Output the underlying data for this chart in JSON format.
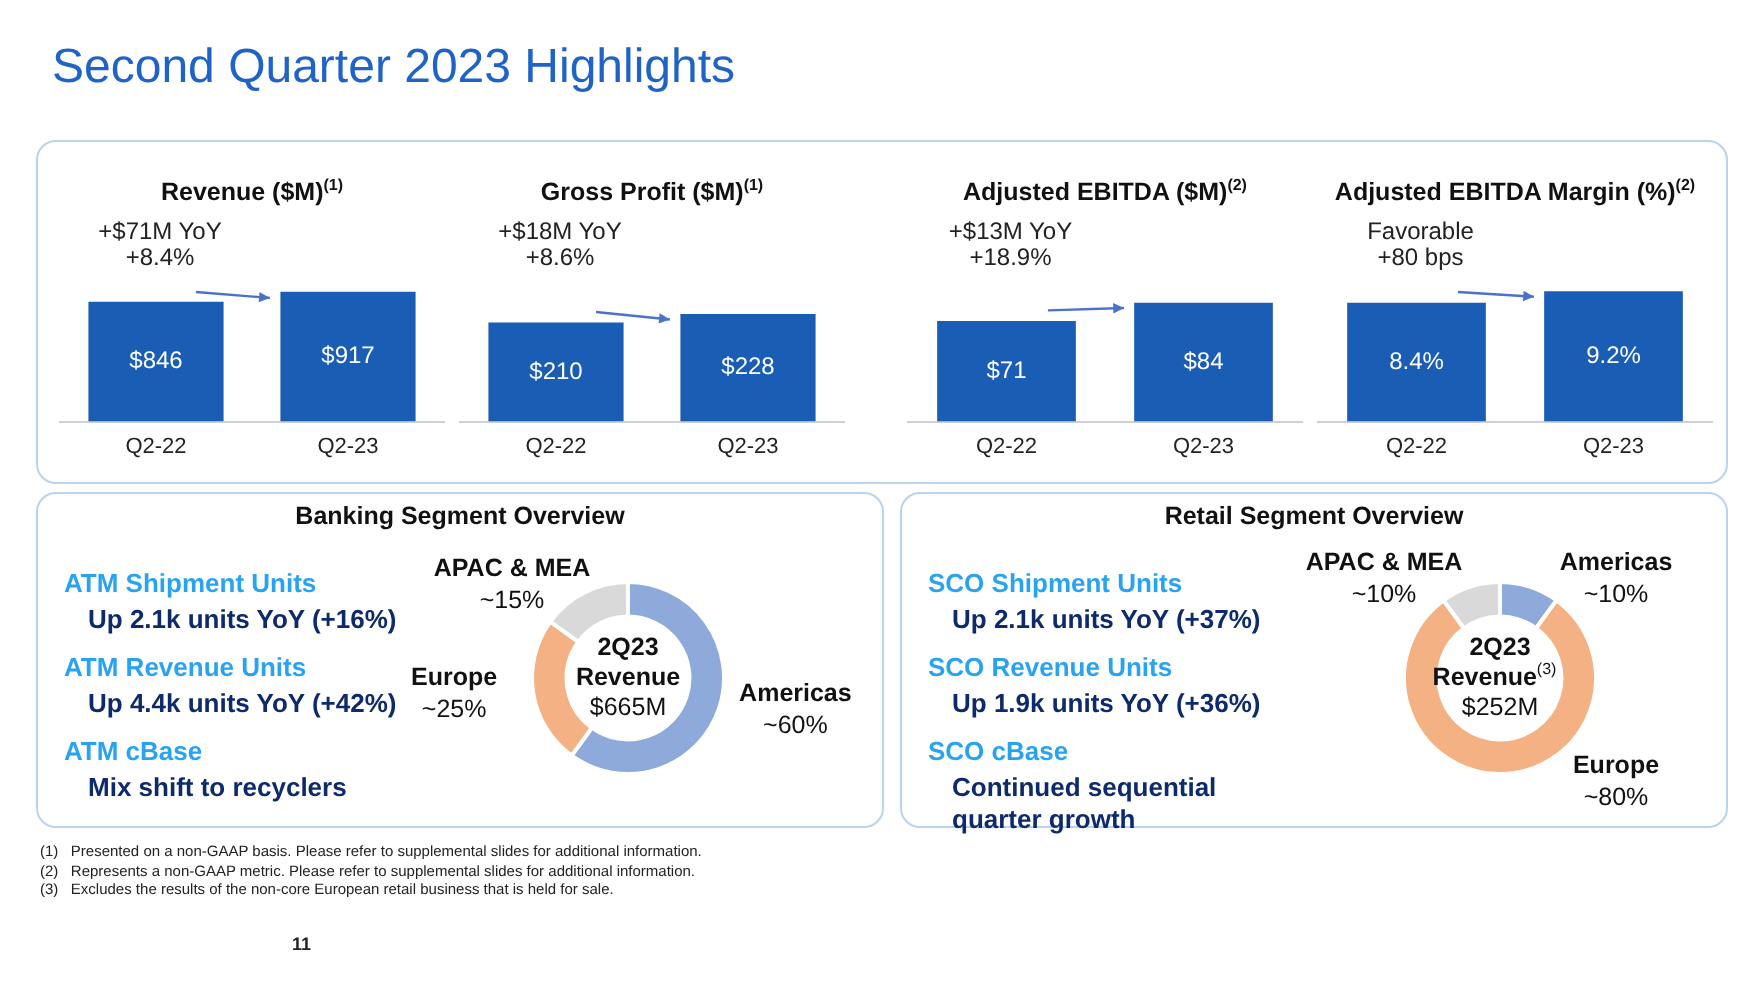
{
  "chart_data": [
    {
      "type": "other",
      "title": "Second Quarter 2023 Highlights",
      "annotations": [
        "(1)   Presented on a non-GAAP basis. Please refer to supplemental slides for additional information.",
        "(2)   Represents a non-GAAP metric. Please refer to supplemental slides for additional information.",
        "(3)   Excludes the results of the non-core European retail business that is held for sale.",
        "11"
      ]
    },
    {
      "type": "bar",
      "title": "Revenue ($M)$^{(1)}$",
      "categories": [
        "Q2-22",
        "Q2-23"
      ],
      "values": [
        846,
        917
      ],
      "value_labels": [
        "$846",
        "$917"
      ],
      "color": "#1a5db4",
      "tick_labels": "x",
      "annotations": [
        "+$71M YoY\n+8.4%"
      ]
    },
    {
      "type": "bar",
      "title": "Gross Profit ($M)$^{(1)}$",
      "categories": [
        "Q2-22",
        "Q2-23"
      ],
      "values": [
        210,
        228
      ],
      "value_labels": [
        "$210",
        "$228"
      ],
      "color": "#1a5db4",
      "tick_labels": "x",
      "annotations": [
        "+$18M YoY\n+8.6%"
      ]
    },
    {
      "type": "bar",
      "title": "Adjusted EBITDA ($M)$^{(2)}$",
      "categories": [
        "Q2-22",
        "Q2-23"
      ],
      "values": [
        71,
        84
      ],
      "value_labels": [
        "$71",
        "$84"
      ],
      "color": "#1a5db4",
      "tick_labels": "x",
      "annotations": [
        "+$13M YoY\n+18.9%"
      ]
    },
    {
      "type": "bar",
      "title": "Adjusted EBITDA Margin (%)$^{(2)}$",
      "categories": [
        "Q2-22",
        "Q2-23"
      ],
      "values": [
        8.4,
        9.2
      ],
      "value_labels": [
        "8.4%",
        "9.2%"
      ],
      "color": "#1a5db4",
      "tick_labels": "x",
      "annotations": [
        "Favorable\n+80 bps"
      ]
    },
    {
      "type": "donut",
      "title": "Banking Segment Overview",
      "categories": [
        "Americas",
        "Europe",
        "APAC & MEA"
      ],
      "values": [
        60,
        25,
        15
      ],
      "value_labels": [
        "~60%",
        "~25%",
        "~15%"
      ],
      "colors": [
        "#8eaadb",
        "#f4b183",
        "#d9d9d9"
      ],
      "annotations": [
        "2Q23\nRevenue\n$665M",
        "ATM Shipment Units",
        "Up 2.1k units YoY (+16%)",
        "ATM Revenue Units",
        "Up 4.4k units YoY (+42%)",
        "ATM cBase",
        "Mix shift to recyclers"
      ]
    },
    {
      "type": "donut",
      "title": "Retail Segment Overview",
      "categories": [
        "Americas",
        "Europe",
        "APAC & MEA"
      ],
      "values": [
        10,
        80,
        10
      ],
      "value_labels": [
        "~10%",
        "~80%",
        "~10%"
      ],
      "colors": [
        "#8eaadb",
        "#f4b183",
        "#d9d9d9"
      ],
      "annotations": [
        "2Q23\nRevenue$^{(3)}$\n$252M",
        "SCO Shipment Units",
        "Up 2.1k units YoY (+37%)",
        "SCO Revenue Units",
        "Up 1.9k units YoY (+36%)",
        "SCO cBase",
        "Continued sequential quarter growth"
      ]
    }
  ]
}
